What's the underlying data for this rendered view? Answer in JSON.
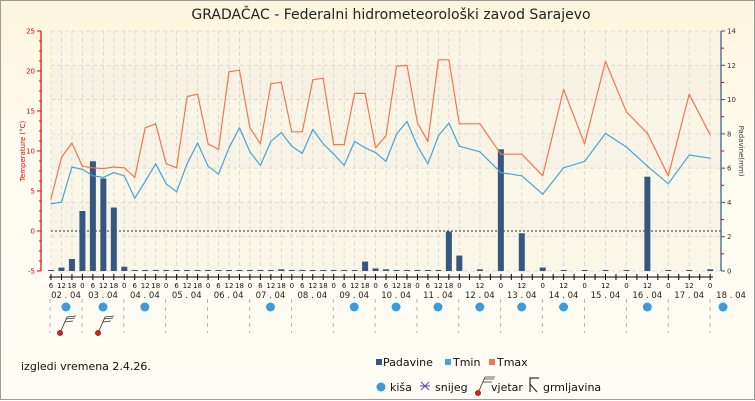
{
  "chart_data": {
    "type": "bar+line",
    "title": "GRADAČAC - Federalni hidrometeorološki zavod Sarajevo",
    "ylabel_left": "Temperature (°C)",
    "ylabel_right": "Padavine(mm)",
    "ylim_left": [
      -5,
      25
    ],
    "yticks_left": [
      "25",
      "20",
      "15",
      "10",
      "5",
      "0",
      "-5"
    ],
    "ylim_right": [
      0,
      14
    ],
    "yticks_right": [
      "14",
      "12",
      "10",
      "8",
      "6",
      "4",
      "2",
      "0"
    ],
    "hour_labels": [
      "6",
      "12",
      "18",
      "0",
      "6",
      "12",
      "18",
      "0",
      "6",
      "12",
      "18",
      "0",
      "6",
      "12",
      "18",
      "0",
      "6",
      "12",
      "18",
      "0",
      "6",
      "12",
      "18",
      "0",
      "6",
      "12",
      "18",
      "0",
      "6",
      "12",
      "18",
      "0",
      "6",
      "12",
      "18",
      "0",
      "6",
      "12",
      "18",
      "0",
      "12",
      "0",
      "12",
      "0",
      "12",
      "0",
      "12",
      "0",
      "12",
      "0",
      "12",
      "0"
    ],
    "day_labels": [
      "02 . 04",
      "03 . 04",
      "04 . 04",
      "05 . 04",
      "06 . 04",
      "07 . 04",
      "08 . 04",
      "09 . 04",
      "10 . 04",
      "11 . 04",
      "12 . 04",
      "13 . 04",
      "14 . 04",
      "15 . 04",
      "16 . 04",
      "17 . 04",
      "18 . 04"
    ],
    "series": [
      {
        "name": "Padavine",
        "type": "bar",
        "color": "#34587f",
        "values": [
          0,
          0.2,
          0.7,
          3.5,
          6.4,
          5.4,
          3.7,
          0.25,
          0,
          0,
          0,
          0,
          0,
          0,
          0,
          0,
          0,
          0,
          0,
          0,
          0,
          0,
          0.1,
          0,
          0,
          0,
          0,
          0,
          0,
          0,
          0.55,
          0.15,
          0.1,
          0,
          0,
          0,
          0,
          0,
          2.3,
          0.9,
          0.1,
          7.1,
          2.2,
          0.2,
          0,
          0,
          0,
          0,
          5.5,
          0,
          0,
          0.1
        ]
      },
      {
        "name": "Tmin",
        "type": "line",
        "color": "#4aa3d6",
        "values": [
          3.4,
          3.6,
          8.0,
          7.7,
          6.9,
          6.7,
          7.3,
          6.9,
          4.1,
          6.2,
          8.4,
          5.9,
          4.9,
          8.4,
          11.0,
          8.1,
          7.1,
          10.4,
          12.9,
          9.9,
          8.2,
          11.2,
          12.3,
          10.6,
          9.7,
          12.7,
          10.9,
          9.6,
          8.2,
          11.2,
          10.4,
          9.8,
          8.7,
          12.1,
          13.7,
          10.6,
          8.4,
          11.9,
          13.5,
          10.6,
          9.9,
          7.3,
          6.9,
          4.6,
          7.9,
          8.7,
          12.2,
          10.5,
          8.1,
          5.9,
          9.5,
          9.1
        ]
      },
      {
        "name": "Tmax",
        "type": "line",
        "color": "#f4764e",
        "values": [
          4.0,
          9.2,
          11.0,
          8.1,
          7.9,
          7.8,
          8.0,
          7.9,
          6.7,
          12.9,
          13.4,
          8.4,
          7.9,
          16.8,
          17.1,
          10.9,
          10.2,
          19.9,
          20.1,
          12.9,
          10.9,
          18.4,
          18.6,
          12.4,
          12.4,
          18.9,
          19.1,
          10.8,
          10.8,
          17.2,
          17.2,
          10.4,
          11.9,
          20.6,
          20.7,
          13.5,
          11.2,
          21.4,
          21.4,
          13.4,
          13.4,
          9.6,
          9.6,
          6.9,
          17.7,
          10.9,
          21.2,
          14.9,
          12.2,
          6.9,
          17.1,
          12.0
        ]
      }
    ],
    "rain_days": [
      0,
      1,
      2,
      5,
      7,
      8,
      9,
      10,
      11,
      12,
      14,
      16
    ],
    "wind_days": [
      0,
      1
    ],
    "legend": {
      "placement": "bottom-right",
      "series_labels": [
        "Padavine",
        "Tmin",
        "Tmax"
      ],
      "symbol_labels": [
        "kiša",
        "snijeg",
        "vjetar",
        "grmljavina"
      ]
    }
  },
  "footer": {
    "note": "izgledi vremena 2.4.26."
  }
}
